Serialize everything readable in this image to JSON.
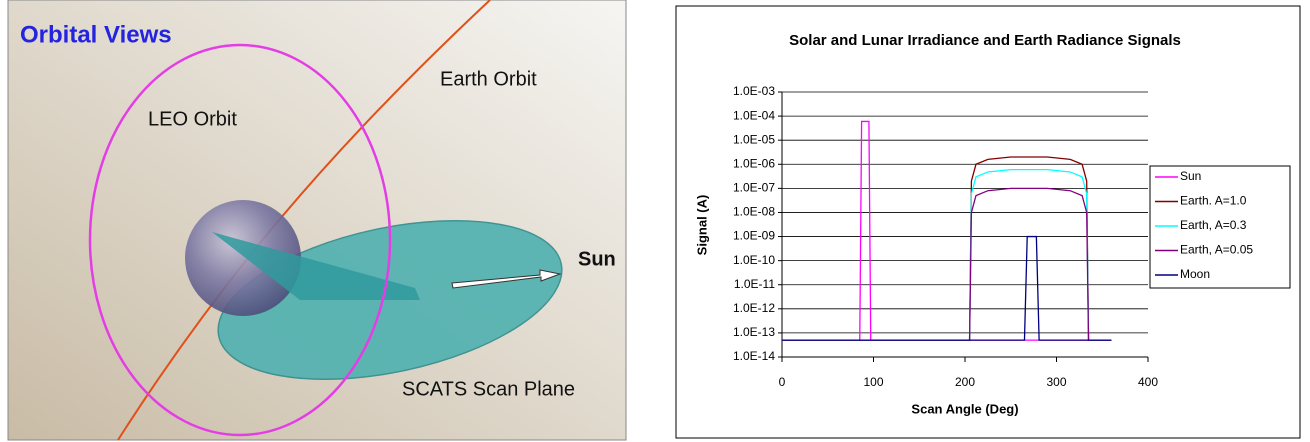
{
  "diagram": {
    "title": "Orbital Views",
    "labels": [
      "Earth Orbit",
      "LEO Orbit",
      "Sun",
      "SCATS Scan Plane"
    ]
  },
  "chart_data": {
    "type": "line",
    "title": "Solar and Lunar Irradiance and Earth Radiance Signals",
    "x_label": "Scan Angle (Deg)",
    "y_label": "Signal (A)",
    "log_scale": true,
    "grid": true,
    "xlim": [
      0,
      400
    ],
    "xticks": [
      0,
      100,
      200,
      300,
      400
    ],
    "ylim": [
      1e-14,
      0.001
    ],
    "yticks": [
      {
        "value": 1e-14,
        "label": "1.0E-14"
      },
      {
        "value": 1e-13,
        "label": "1.0E-13"
      },
      {
        "value": 1e-12,
        "label": "1.0E-12"
      },
      {
        "value": 1e-11,
        "label": "1.0E-11"
      },
      {
        "value": 1e-10,
        "label": "1.0E-10"
      },
      {
        "value": 1e-09,
        "label": "1.0E-09"
      },
      {
        "value": 1e-08,
        "label": "1.0E-08"
      },
      {
        "value": 1e-07,
        "label": "1.0E-07"
      },
      {
        "value": 1e-06,
        "label": "1.0E-06"
      },
      {
        "value": 1e-05,
        "label": "1.0E-05"
      },
      {
        "value": 0.0001,
        "label": "1.0E-04"
      },
      {
        "value": 0.001,
        "label": "1.0E-03"
      }
    ],
    "series": [
      {
        "name": "Sun",
        "color": "#ff00ff",
        "x": [
          0,
          85,
          87,
          95,
          97,
          360
        ],
        "values": [
          5e-14,
          5e-14,
          6e-05,
          6e-05,
          5e-14,
          5e-14
        ]
      },
      {
        "name": "Earth. A=1.0",
        "color": "#800000",
        "x": [
          0,
          205,
          207,
          212,
          225,
          250,
          290,
          315,
          328,
          333,
          335,
          360
        ],
        "values": [
          5e-14,
          5e-14,
          2e-07,
          1e-06,
          1.6e-06,
          2e-06,
          2e-06,
          1.6e-06,
          1e-06,
          2e-07,
          5e-14,
          5e-14
        ]
      },
      {
        "name": "Earth, A=0.3",
        "color": "#00ffff",
        "x": [
          0,
          205,
          207,
          212,
          225,
          250,
          290,
          315,
          328,
          333,
          335,
          360
        ],
        "values": [
          5e-14,
          5e-14,
          6e-08,
          3e-07,
          4.8e-07,
          6e-07,
          6e-07,
          4.8e-07,
          3e-07,
          6e-08,
          5e-14,
          5e-14
        ]
      },
      {
        "name": "Earth, A=0.05",
        "color": "#800080",
        "x": [
          0,
          205,
          207,
          212,
          225,
          250,
          290,
          315,
          328,
          333,
          335,
          360
        ],
        "values": [
          5e-14,
          5e-14,
          1e-08,
          5e-08,
          8e-08,
          1e-07,
          1e-07,
          8e-08,
          5e-08,
          1e-08,
          5e-14,
          5e-14
        ]
      },
      {
        "name": "Moon",
        "color": "#000080",
        "x": [
          0,
          265,
          268,
          278,
          281,
          360
        ],
        "values": [
          5e-14,
          5e-14,
          1e-09,
          1e-09,
          5e-14,
          5e-14
        ]
      }
    ]
  }
}
